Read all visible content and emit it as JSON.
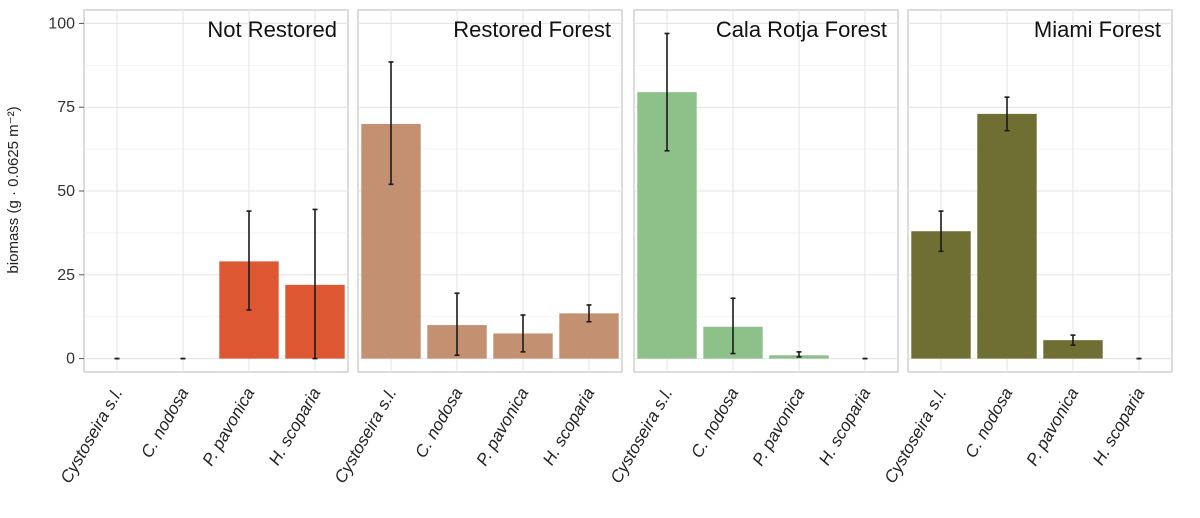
{
  "chart_data": {
    "type": "bar",
    "categories": [
      "Cystoseira s.l.",
      "C. nodosa",
      "P. pavonica",
      "H. scoparia"
    ],
    "ylabel": "biomass (g · 0.0625 m⁻²)",
    "ylim": [
      -4,
      104
    ],
    "yticks": [
      0,
      25,
      50,
      75,
      100
    ],
    "grid": true,
    "panels": [
      {
        "title": "Not Restored",
        "color": "#dd5733",
        "values": [
          0,
          0,
          29,
          22
        ],
        "err_low": [
          0,
          0,
          14.5,
          0
        ],
        "err_high": [
          0,
          0,
          44,
          44.5
        ]
      },
      {
        "title": "Restored Forest",
        "color": "#c39072",
        "values": [
          70,
          10,
          7.5,
          13.5
        ],
        "err_low": [
          52,
          1,
          2,
          11
        ],
        "err_high": [
          88.5,
          19.5,
          13,
          16
        ]
      },
      {
        "title": "Cala Rotja Forest",
        "color": "#8ec18a",
        "values": [
          79.5,
          9.5,
          1,
          0
        ],
        "err_low": [
          62,
          1.5,
          0.5,
          0
        ],
        "err_high": [
          97,
          18,
          2,
          0
        ]
      },
      {
        "title": "Miami Forest",
        "color": "#6f6f34",
        "values": [
          38,
          73,
          5.5,
          0
        ],
        "err_low": [
          32,
          68,
          4,
          0
        ],
        "err_high": [
          44,
          78,
          7,
          0
        ]
      }
    ]
  }
}
